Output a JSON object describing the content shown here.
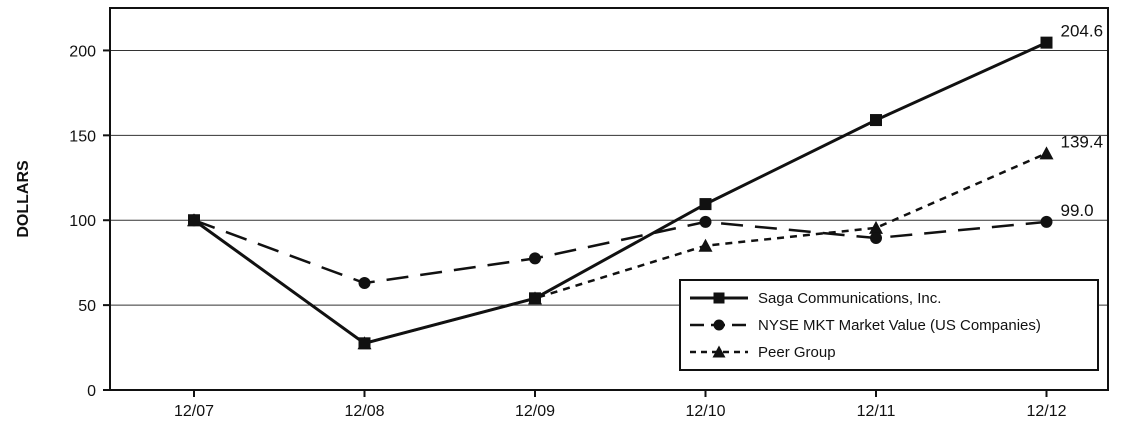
{
  "chart_data": {
    "type": "line",
    "title": "",
    "xlabel": "",
    "ylabel": "DOLLARS",
    "categories": [
      "12/07",
      "12/08",
      "12/09",
      "12/10",
      "12/11",
      "12/12"
    ],
    "ylim": [
      0,
      225
    ],
    "yticks": [
      0,
      50,
      100,
      150,
      200
    ],
    "grid": "horizontal",
    "legend_position": "bottom-right",
    "series": [
      {
        "name": "Saga Communications, Inc.",
        "values": [
          100,
          27.5,
          54,
          109.5,
          159,
          204.6
        ],
        "line_style": "solid",
        "marker": "square",
        "end_label": "204.6"
      },
      {
        "name": "NYSE MKT Market Value (US Companies)",
        "values": [
          100,
          63,
          77.5,
          99,
          89.5,
          99.0
        ],
        "line_style": "dashed",
        "marker": "circle",
        "end_label": "99.0"
      },
      {
        "name": "Peer Group",
        "values": [
          100,
          27.5,
          54,
          85,
          95.5,
          139.4
        ],
        "line_style": "dotted",
        "marker": "triangle",
        "end_label": "139.4"
      }
    ]
  }
}
